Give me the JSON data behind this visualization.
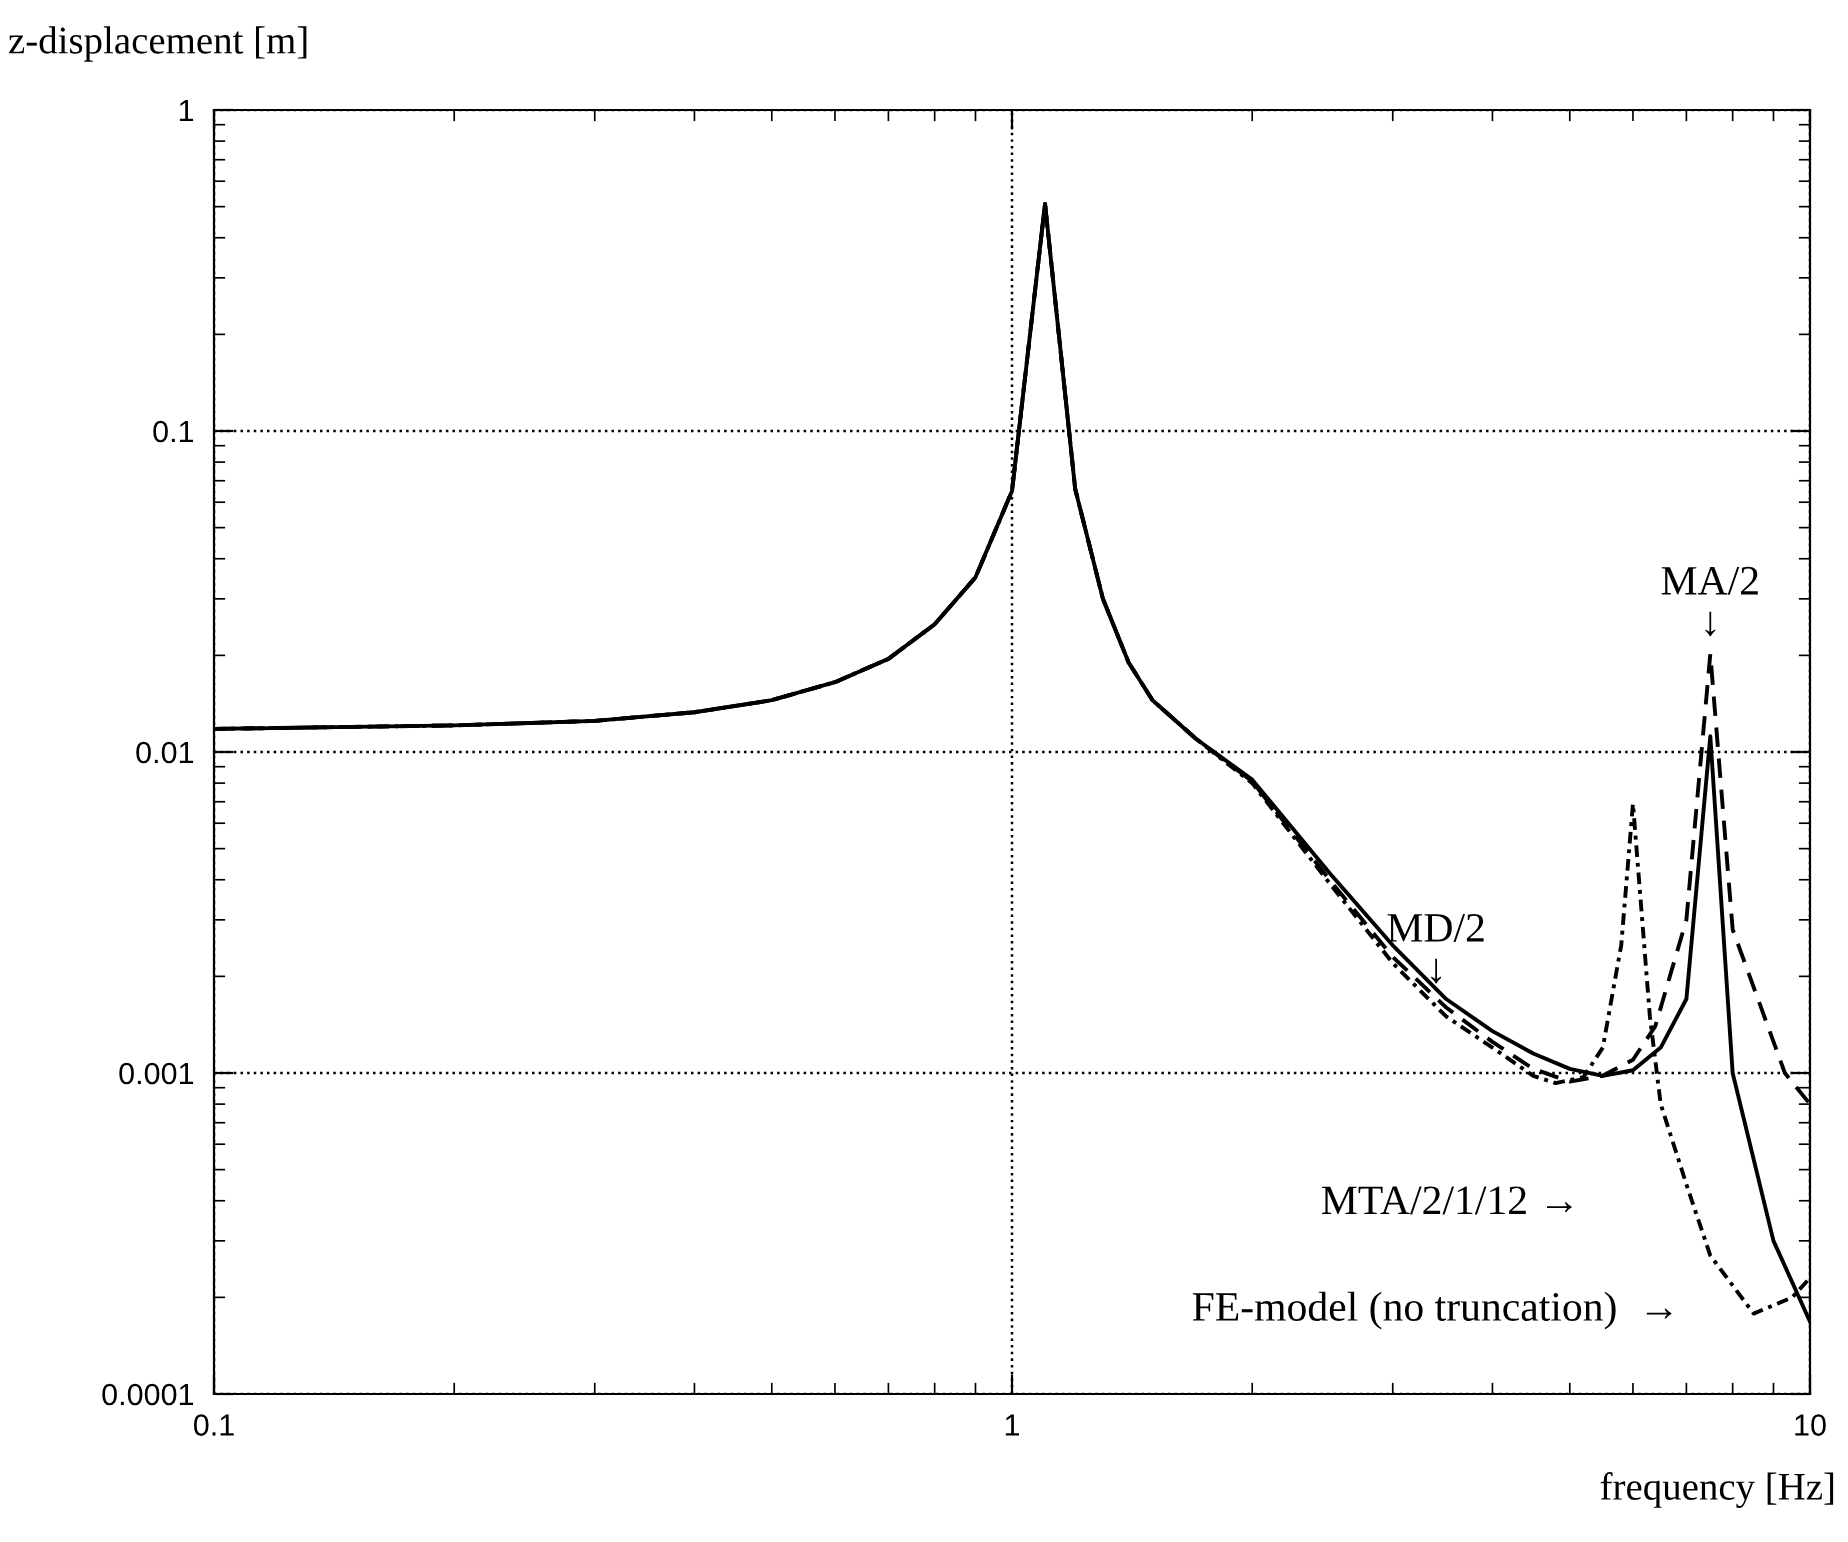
{
  "chart_data": {
    "type": "line",
    "xlabel": "frequency [Hz]",
    "ylabel": "z-displacement [m]",
    "log": "xy",
    "xlim": [
      0.1,
      10
    ],
    "ylim": [
      0.0001,
      1
    ],
    "xticks": [
      0.1,
      1,
      10
    ],
    "yticks": [
      0.0001,
      0.001,
      0.01,
      0.1,
      1
    ],
    "grid": true,
    "series": [
      {
        "color": "#000000",
        "line_style": "solid",
        "x": [
          0.1,
          0.2,
          0.3,
          0.4,
          0.5,
          0.6,
          0.7,
          0.8,
          0.9,
          1.0,
          1.1,
          1.2,
          1.3,
          1.4,
          1.5,
          1.7,
          2,
          2.5,
          3,
          3.5,
          4,
          4.5,
          5,
          5.5,
          6,
          6.5,
          7,
          7.5,
          8,
          9,
          10
        ],
        "values": [
          0.0118,
          0.0121,
          0.0125,
          0.0133,
          0.0145,
          0.0165,
          0.0195,
          0.025,
          0.035,
          0.065,
          0.51,
          0.066,
          0.03,
          0.019,
          0.0145,
          0.011,
          0.0082,
          0.0042,
          0.0025,
          0.0017,
          0.00135,
          0.00115,
          0.00103,
          0.00098,
          0.00102,
          0.0012,
          0.0017,
          0.0112,
          0.001,
          0.0003,
          0.000168
        ]
      },
      {
        "color": "#000000",
        "line_style": "dashed",
        "x": [
          0.1,
          0.2,
          0.3,
          0.4,
          0.5,
          0.6,
          0.7,
          0.8,
          0.9,
          1.0,
          1.1,
          1.2,
          1.3,
          1.4,
          1.5,
          1.7,
          2,
          2.5,
          3,
          3.5,
          4,
          4.5,
          5,
          5.5,
          6,
          6.4,
          7,
          7.5,
          8,
          9.3,
          10
        ],
        "values": [
          0.0118,
          0.0121,
          0.0125,
          0.0133,
          0.0145,
          0.0165,
          0.0195,
          0.025,
          0.035,
          0.065,
          0.51,
          0.066,
          0.03,
          0.019,
          0.0145,
          0.011,
          0.0081,
          0.004,
          0.0023,
          0.0016,
          0.00125,
          0.00103,
          0.00094,
          0.00098,
          0.0011,
          0.0014,
          0.003,
          0.0202,
          0.0028,
          0.001,
          0.0008
        ]
      },
      {
        "color": "#000000",
        "line_style": "dashdot",
        "x": [
          0.1,
          0.2,
          0.3,
          0.4,
          0.5,
          0.6,
          0.7,
          0.8,
          0.9,
          1.0,
          1.1,
          1.2,
          1.3,
          1.4,
          1.5,
          1.7,
          2,
          2.5,
          3,
          3.5,
          4,
          4.5,
          4.8,
          5.2,
          5.5,
          5.8,
          6,
          6.3,
          6.5,
          7,
          7.5,
          8.5,
          9.5,
          10
        ],
        "values": [
          0.0118,
          0.0121,
          0.0125,
          0.0133,
          0.0145,
          0.0165,
          0.0195,
          0.025,
          0.035,
          0.065,
          0.51,
          0.066,
          0.03,
          0.019,
          0.0145,
          0.011,
          0.008,
          0.0039,
          0.0022,
          0.0015,
          0.0012,
          0.00098,
          0.00093,
          0.00097,
          0.0012,
          0.0025,
          0.0069,
          0.0015,
          0.0008,
          0.00045,
          0.00027,
          0.000178,
          0.0002,
          0.00023
        ]
      }
    ],
    "annotations": [
      {
        "text": "MA/2\n↓",
        "x": 7.5,
        "y": 0.0217
      },
      {
        "text": "MD/2\n↓",
        "x": 3.4,
        "y": 0.0018
      },
      "MTA/2/1/12 →",
      "FE-model (no truncation)  →"
    ]
  }
}
